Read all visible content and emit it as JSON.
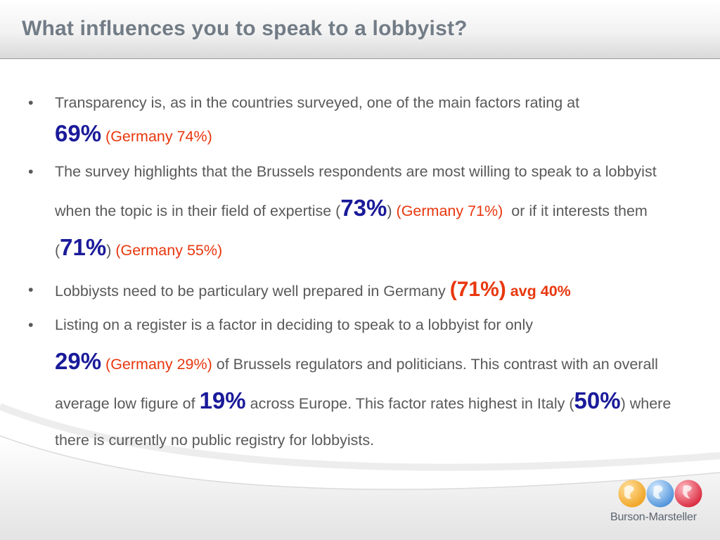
{
  "slide": {
    "title": "What influences you to speak to a lobbyist?"
  },
  "bullets": [
    {
      "t1": "Transparency is, as in the countries surveyed, one of the main factors rating at",
      "v1": "69%",
      "g1": "(Germany 74%)"
    },
    {
      "t1": "The survey highlights that the Brussels respondents are most willing to speak to a lobbyist when the topic is in their field of expertise (",
      "v1": "73%",
      "t2": ")",
      "g1": "(Germany 71%)",
      "t3": "or if it interests them (",
      "v2": "71%",
      "t4": ")",
      "g2": "(Germany 55%)"
    },
    {
      "t1": "Lobbiysts need to be particulary well prepared in Germany",
      "v1": "(71%)",
      "g1": "avg 40%"
    },
    {
      "t1": "Listing on a register is a factor in deciding to speak to a lobbyist for only",
      "v1": "29%",
      "g1": "(Germany 29%)",
      "t2": "of Brussels regulators and politicians.  This contrast with an overall average low figure of",
      "v2": "19%",
      "t3": "across Europe. This factor rates highest in Italy (",
      "v3": "50%",
      "t4": ")",
      "t5": "where there is currently no public registry for lobbyists."
    }
  ],
  "logo": {
    "text": "Burson-Marsteller",
    "globe_colors": [
      "#f0a21e",
      "#4a8fd8",
      "#d9263c"
    ]
  },
  "colors": {
    "title": "#727c86",
    "body_text": "#595959",
    "highlight_blue": "#1a1a9a",
    "germany_red": "#e8370e"
  }
}
